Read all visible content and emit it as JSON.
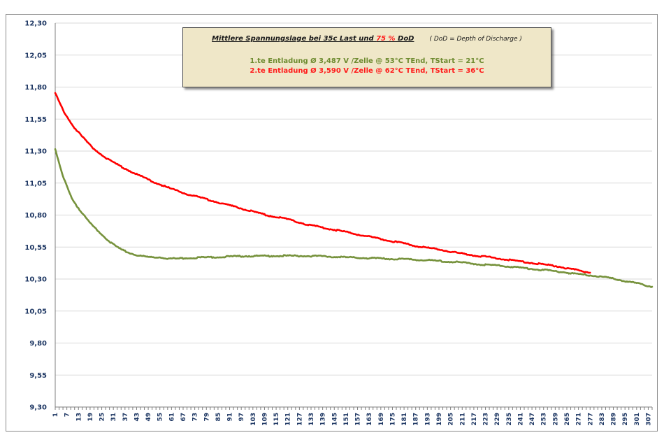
{
  "chart_data": {
    "type": "line",
    "title_parts": [
      "Mittlere Spannungslage bei 35c Last und ",
      "75 %",
      " DoD"
    ],
    "title_note": "( DoD = Depth of Discharge )",
    "ylim": [
      9.3,
      12.3
    ],
    "y_ticks": [
      9.3,
      9.55,
      9.8,
      10.05,
      10.3,
      10.55,
      10.8,
      11.05,
      11.3,
      11.55,
      11.8,
      12.05,
      12.3
    ],
    "y_tick_labels": [
      "9,30",
      "9,55",
      "9,80",
      "10,05",
      "10,30",
      "10,55",
      "10,80",
      "11,05",
      "11,30",
      "11,55",
      "11,80",
      "12,05",
      "12,30"
    ],
    "x_range": [
      1,
      309
    ],
    "x_tick_labels": [
      "1",
      "7",
      "13",
      "19",
      "25",
      "31",
      "37",
      "43",
      "49",
      "55",
      "61",
      "67",
      "73",
      "79",
      "85",
      "91",
      "97",
      "103",
      "109",
      "115",
      "121",
      "127",
      "133",
      "139",
      "145",
      "151",
      "157",
      "163",
      "169",
      "175",
      "181",
      "187",
      "193",
      "199",
      "205",
      "211",
      "217",
      "223",
      "229",
      "235",
      "241",
      "247",
      "253",
      "259",
      "265",
      "271",
      "277",
      "283",
      "289",
      "295",
      "301",
      "307"
    ],
    "grid": true,
    "series": [
      {
        "name": "1.te Entladung Ø 3,487 V  /Zelle @  53°C TEnd,  TStart = 21°C",
        "color": "#76923c",
        "x": [
          1,
          5,
          10,
          15,
          20,
          25,
          30,
          35,
          40,
          45,
          50,
          55,
          60,
          65,
          70,
          80,
          90,
          100,
          110,
          120,
          130,
          140,
          150,
          160,
          170,
          180,
          190,
          200,
          210,
          220,
          230,
          240,
          250,
          260,
          270,
          280,
          290,
          300,
          309
        ],
        "values": [
          11.31,
          11.1,
          10.92,
          10.81,
          10.72,
          10.65,
          10.58,
          10.53,
          10.5,
          10.48,
          10.47,
          10.47,
          10.46,
          10.46,
          10.465,
          10.47,
          10.475,
          10.48,
          10.48,
          10.482,
          10.48,
          10.478,
          10.47,
          10.465,
          10.46,
          10.455,
          10.45,
          10.44,
          10.43,
          10.415,
          10.405,
          10.39,
          10.375,
          10.36,
          10.34,
          10.325,
          10.3,
          10.27,
          10.24
        ]
      },
      {
        "name": "2.te Entladung Ø 3,590 V  /Zelle  @  62°C TEnd,  TStart = 36°C",
        "color": "#ff0000",
        "x": [
          1,
          5,
          10,
          15,
          20,
          25,
          30,
          40,
          50,
          60,
          70,
          80,
          90,
          100,
          110,
          120,
          130,
          140,
          150,
          160,
          170,
          180,
          190,
          200,
          210,
          220,
          230,
          240,
          250,
          260,
          270,
          277
        ],
        "values": [
          11.75,
          11.62,
          11.5,
          11.41,
          11.33,
          11.27,
          11.22,
          11.14,
          11.07,
          11.01,
          10.96,
          10.92,
          10.88,
          10.84,
          10.8,
          10.77,
          10.73,
          10.7,
          10.67,
          10.64,
          10.61,
          10.58,
          10.55,
          10.53,
          10.5,
          10.48,
          10.46,
          10.44,
          10.42,
          10.4,
          10.37,
          10.35
        ]
      }
    ]
  }
}
